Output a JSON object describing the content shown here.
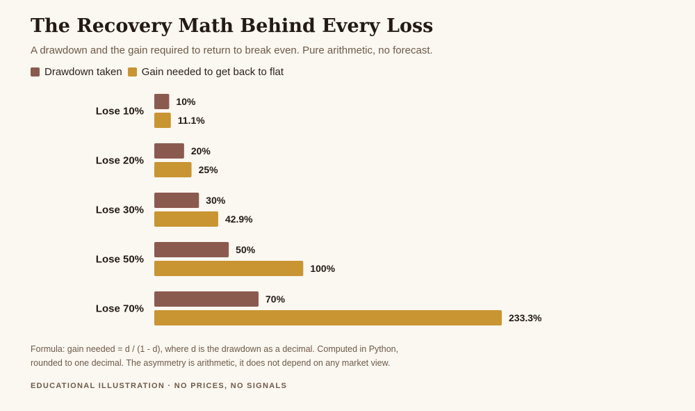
{
  "header": {
    "title": "The Recovery Math Behind Every Loss",
    "subtitle": "A drawdown and the gain required to return to break even. Pure arithmetic, no forecast."
  },
  "colors": {
    "drawdown": "#8b5a4f",
    "gain": "#c99532"
  },
  "chart_data": {
    "type": "bar",
    "orientation": "horizontal",
    "categories": [
      "Lose 10%",
      "Lose 20%",
      "Lose 30%",
      "Lose 50%",
      "Lose 70%"
    ],
    "series": [
      {
        "name": "Drawdown taken",
        "values": [
          10,
          20,
          30,
          50,
          70
        ],
        "labels": [
          "10%",
          "20%",
          "30%",
          "50%",
          "70%"
        ]
      },
      {
        "name": "Gain needed to get back to flat",
        "values": [
          11.1,
          25,
          42.9,
          100,
          233.3
        ],
        "labels": [
          "11.1%",
          "25%",
          "42.9%",
          "100%",
          "233.3%"
        ]
      }
    ],
    "xlim": [
      0,
      233.3
    ],
    "grid": false,
    "legend": "top-left"
  },
  "notes": {
    "formula_line1": "Formula: gain needed = d / (1 - d), where d is the drawdown as a decimal. Computed in Python,",
    "formula_line2": "rounded to one decimal. The asymmetry is arithmetic, it does not depend on any market view.",
    "footer": "EDUCATIONAL ILLUSTRATION · NO PRICES, NO SIGNALS"
  }
}
